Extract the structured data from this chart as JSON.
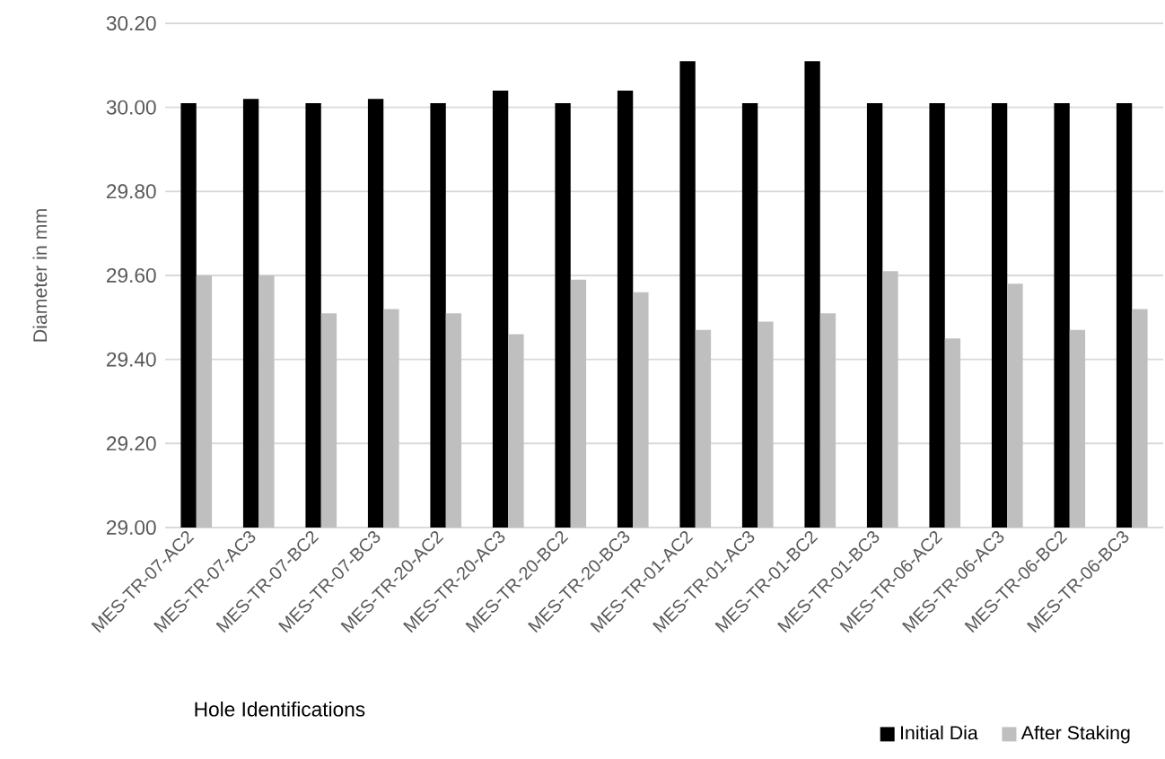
{
  "chart_data": {
    "type": "bar",
    "xlabel": "Hole Identifications",
    "ylabel": "Diameter in mm",
    "categories": [
      "MES-TR-07-AC2",
      "MES-TR-07-AC3",
      "MES-TR-07-BC2",
      "MES-TR-07-BC3",
      "MES-TR-20-AC2",
      "MES-TR-20-AC3",
      "MES-TR-20-BC2",
      "MES-TR-20-BC3",
      "MES-TR-01-AC2",
      "MES-TR-01-AC3",
      "MES-TR-01-BC2",
      "MES-TR-01-BC3",
      "MES-TR-06-AC2",
      "MES-TR-06-AC3",
      "MES-TR-06-BC2",
      "MES-TR-06-BC3"
    ],
    "series": [
      {
        "name": "Initial Dia",
        "color": "#000000",
        "values": [
          30.01,
          30.02,
          30.01,
          30.02,
          30.01,
          30.04,
          30.01,
          30.04,
          30.11,
          30.01,
          30.11,
          30.01,
          30.01,
          30.01,
          30.01,
          30.01
        ]
      },
      {
        "name": "After Staking",
        "color": "#bfbfbf",
        "values": [
          29.6,
          29.6,
          29.51,
          29.52,
          29.51,
          29.46,
          29.59,
          29.56,
          29.47,
          29.49,
          29.51,
          29.61,
          29.45,
          29.58,
          29.47,
          29.52
        ]
      }
    ],
    "ylim": [
      29.0,
      30.2
    ],
    "yticks": [
      {
        "value": 29.0,
        "label": "29.00"
      },
      {
        "value": 29.2,
        "label": "29.20"
      },
      {
        "value": 29.4,
        "label": "29.40"
      },
      {
        "value": 29.6,
        "label": "29.60"
      },
      {
        "value": 29.8,
        "label": "29.80"
      },
      {
        "value": 30.0,
        "label": "30.00"
      },
      {
        "value": 30.2,
        "label": "30.20"
      }
    ],
    "grid": "y",
    "legend": "bottom right"
  }
}
